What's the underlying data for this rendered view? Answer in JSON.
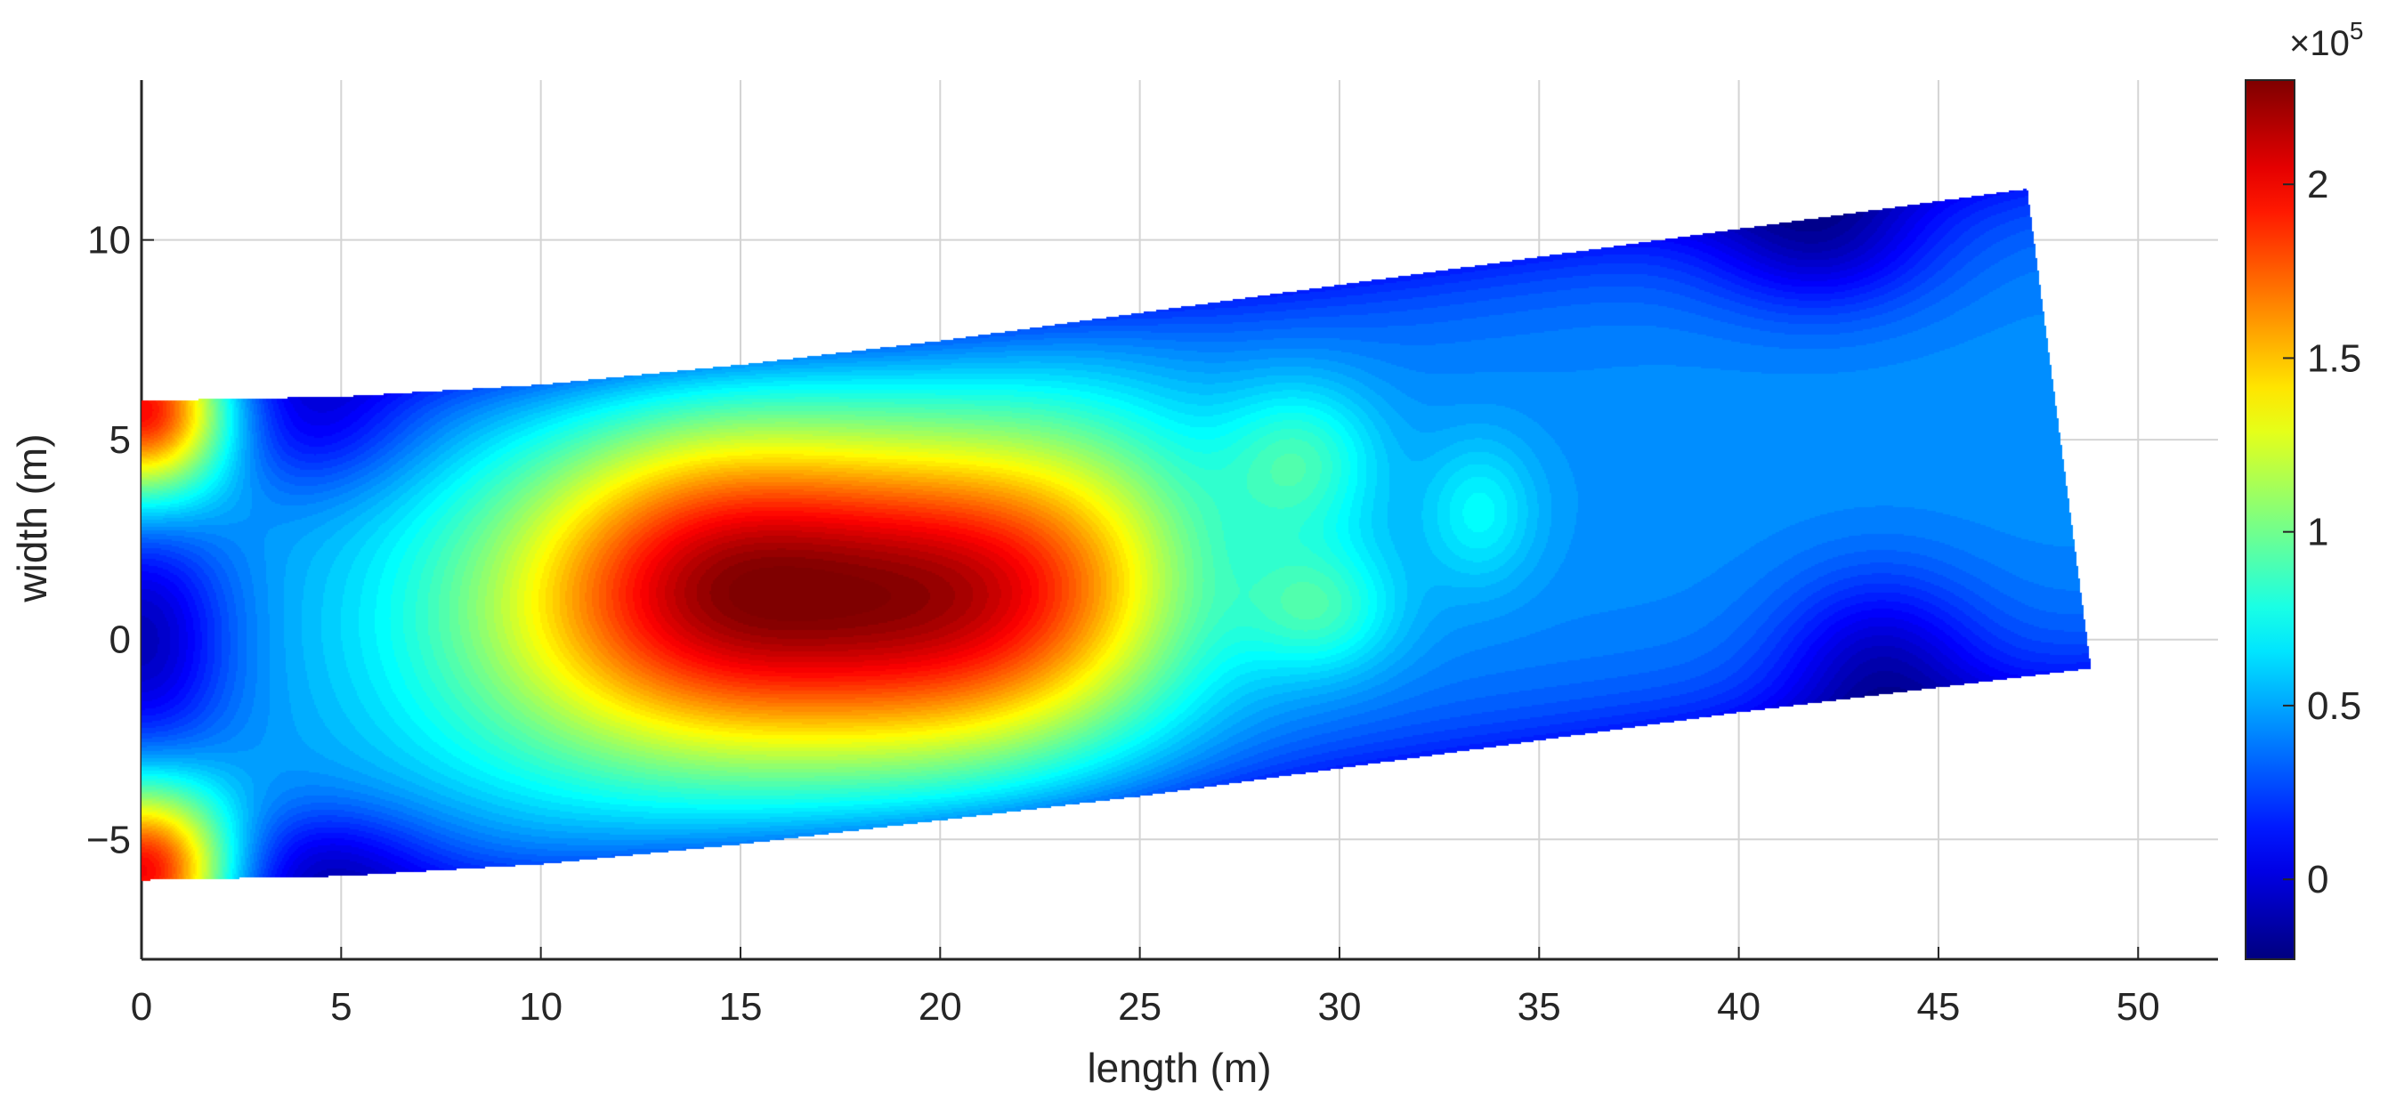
{
  "chart_data": {
    "type": "heatmap",
    "subtype": "filled-contour",
    "xlabel": "length (m)",
    "ylabel": "width (m)",
    "xlim": [
      0,
      52
    ],
    "ylim": [
      -8,
      14
    ],
    "xticks": [
      0,
      5,
      10,
      15,
      20,
      25,
      30,
      35,
      40,
      45,
      50
    ],
    "yticks": [
      -5,
      0,
      5,
      10
    ],
    "grid": true,
    "colormap": "jet",
    "colorbar": {
      "position": "right",
      "multiplier_label": "×10",
      "multiplier_exponent": "5",
      "limits": [
        -0.23,
        2.3
      ],
      "ticks": [
        0,
        0.5,
        1,
        1.5,
        2
      ],
      "tick_labels": [
        "0",
        "0.5",
        "1",
        "1.5",
        "2"
      ]
    },
    "domain_boundary": {
      "top": [
        [
          0,
          6
        ],
        [
          5,
          6.1
        ],
        [
          10,
          6.4
        ],
        [
          15,
          6.9
        ],
        [
          20,
          7.5
        ],
        [
          25,
          8.2
        ],
        [
          30,
          8.9
        ],
        [
          35,
          9.6
        ],
        [
          40,
          10.3
        ],
        [
          47.2,
          11.3
        ]
      ],
      "bottom": [
        [
          0,
          -6
        ],
        [
          5,
          -5.9
        ],
        [
          10,
          -5.6
        ],
        [
          15,
          -5.1
        ],
        [
          20,
          -4.5
        ],
        [
          25,
          -3.9
        ],
        [
          30,
          -3.2
        ],
        [
          35,
          -2.5
        ],
        [
          40,
          -1.8
        ],
        [
          48.8,
          -0.7
        ]
      ]
    },
    "field_units_scale": 100000,
    "field_background": 0.45,
    "features": [
      {
        "x": 17.5,
        "y": 1,
        "value": 1.6
      },
      {
        "x": 14,
        "y": 1.5,
        "value": 1.35
      },
      {
        "x": 21,
        "y": 1,
        "value": 1.3
      },
      {
        "x": 10,
        "y": 0.5,
        "value": 0.95
      },
      {
        "x": 24,
        "y": 2,
        "value": 0.9
      },
      {
        "x": 29,
        "y": 4.5,
        "value": 0.9
      },
      {
        "x": 29.5,
        "y": 0.8,
        "value": 0.9
      },
      {
        "x": 33.5,
        "y": 3.2,
        "value": 0.75
      },
      {
        "x": 42,
        "y": 10,
        "value": 0.0
      },
      {
        "x": 43.5,
        "y": -0.5,
        "value": 0.0
      },
      {
        "x": 4,
        "y": 5.3,
        "value": 0.1
      },
      {
        "x": 4.5,
        "y": -5.5,
        "value": 0.1
      },
      {
        "x": 0,
        "y": 0,
        "value": -0.15
      },
      {
        "x": 0,
        "y": 6,
        "value": 2.3
      },
      {
        "x": 0,
        "y": -6,
        "value": 2.3
      }
    ]
  }
}
